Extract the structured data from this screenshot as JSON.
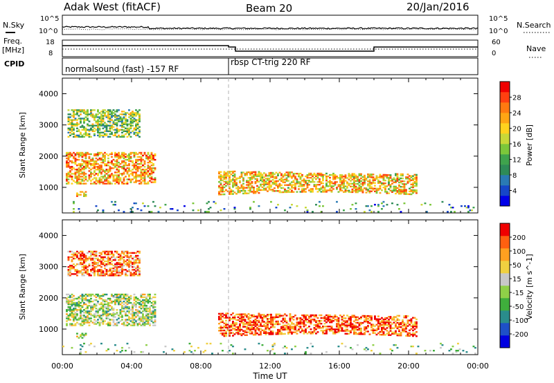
{
  "header": {
    "station": "Adak West (fitACF)",
    "beam": "Beam 20",
    "date": "20/Jan/2016"
  },
  "top_panels": {
    "nsky_label": "N.Sky",
    "nsky_ticks": [
      "10^5",
      "10^0"
    ],
    "nsearch_label": "N.Search",
    "nsearch_ticks": [
      "10^5",
      "10^0"
    ],
    "freq_label_1": "Freq.",
    "freq_label_2": "[MHz]",
    "freq_ticks": [
      "18",
      "8"
    ],
    "nave_label": "Nave",
    "nave_ticks": [
      "60",
      "0"
    ],
    "cpid_label": "CPID",
    "cpid_segments": [
      {
        "label": "normalsound (fast) -157 RF",
        "start_hour": 0.0,
        "end_hour": 9.6
      },
      {
        "label": "rbsp CT-trig 220 RF",
        "start_hour": 9.6,
        "end_hour": 24.0
      }
    ]
  },
  "chart_data": [
    {
      "type": "heatmap",
      "name": "power",
      "ylabel": "Slant Range [km]",
      "xlabel": "",
      "xlim": [
        0,
        24
      ],
      "ylim": [
        180,
        4500
      ],
      "y_ticks": [
        "1000",
        "2000",
        "3000",
        "4000"
      ],
      "colorbar_label": "Power [dB]",
      "colorbar_ticks": [
        "28",
        "24",
        "20",
        "16",
        "12",
        "8",
        "4"
      ],
      "colorbar_colors": [
        "#0000e8",
        "#1646c8",
        "#2a7ab4",
        "#2e8b57",
        "#3fa34d",
        "#7cc73a",
        "#c8d838",
        "#ffd21e",
        "#ffa514",
        "#ff7a10",
        "#ff4010",
        "#f00000"
      ],
      "echo_regions": [
        {
          "x0": 0.2,
          "x1": 5.3,
          "y0": 1100,
          "y1": 2100,
          "level": 0.7
        },
        {
          "x0": 0.3,
          "x1": 4.5,
          "y0": 2600,
          "y1": 3500,
          "level": 0.45
        },
        {
          "x0": 0.8,
          "x1": 1.4,
          "y0": 700,
          "y1": 850,
          "level": 0.6
        },
        {
          "x0": 9.0,
          "x1": 20.5,
          "y0": 750,
          "y1": 1500,
          "level": 0.65
        },
        {
          "x0": 0.0,
          "x1": 24.0,
          "y0": 200,
          "y1": 550,
          "level": 0.3
        }
      ]
    },
    {
      "type": "heatmap",
      "name": "velocity",
      "ylabel": "Slant Range [km]",
      "xlabel": "Time UT",
      "xlim": [
        0,
        24
      ],
      "ylim": [
        180,
        4500
      ],
      "x_ticks": [
        "00:00",
        "04:00",
        "08:00",
        "12:00",
        "16:00",
        "20:00",
        "00:00"
      ],
      "y_ticks": [
        "1000",
        "2000",
        "3000",
        "4000"
      ],
      "colorbar_label": "Velocity [m s^-1]",
      "colorbar_ticks": [
        "200",
        "100",
        "50",
        "15",
        "-15",
        "-50",
        "-100",
        "-200"
      ],
      "colorbar_colors": [
        "#0000e0",
        "#1e50c8",
        "#2a8c8c",
        "#3fae3c",
        "#8fd048",
        "#c8c8c8",
        "#f0d040",
        "#ffa020",
        "#ff6010",
        "#f00000"
      ],
      "echo_regions": [
        {
          "x0": 0.2,
          "x1": 5.3,
          "y0": 1100,
          "y1": 2100,
          "level": 0.5
        },
        {
          "x0": 0.3,
          "x1": 4.5,
          "y0": 2700,
          "y1": 3500,
          "level": 0.8
        },
        {
          "x0": 0.8,
          "x1": 1.4,
          "y0": 700,
          "y1": 850,
          "level": 0.5
        },
        {
          "x0": 9.0,
          "x1": 20.5,
          "y0": 750,
          "y1": 1500,
          "level": 0.85
        },
        {
          "x0": 0.0,
          "x1": 24.0,
          "y0": 200,
          "y1": 550,
          "level": 0.45
        }
      ]
    }
  ]
}
